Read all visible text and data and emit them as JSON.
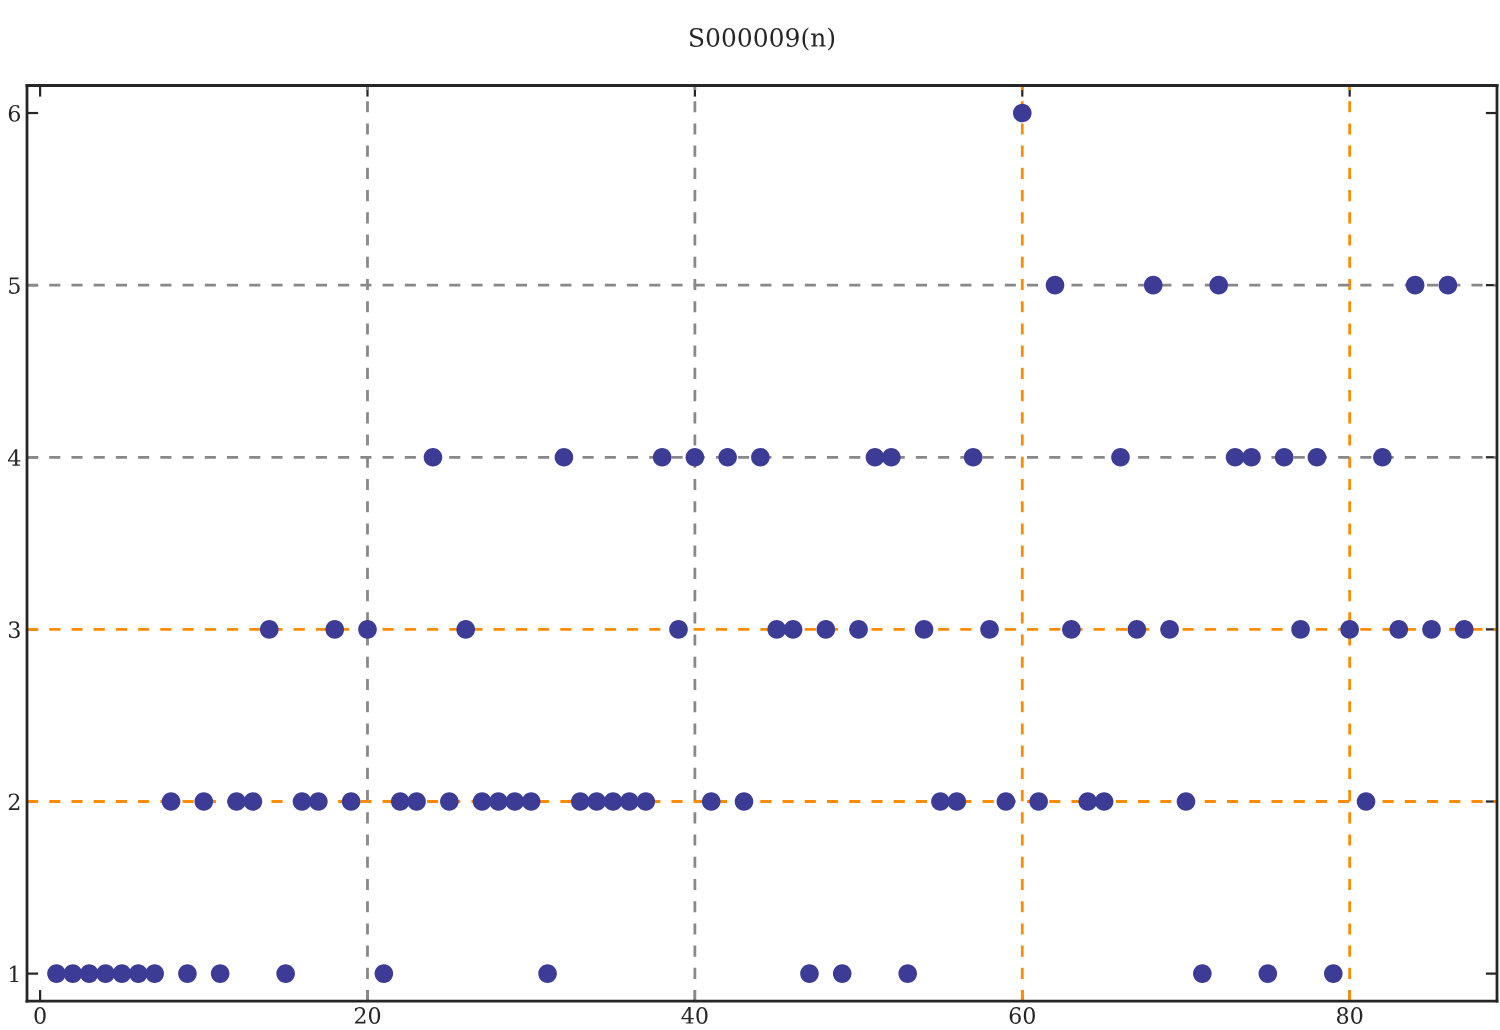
{
  "chart_data": {
    "type": "scatter",
    "title": "S000009(n)",
    "x": [
      1,
      2,
      3,
      4,
      5,
      6,
      7,
      8,
      9,
      10,
      11,
      12,
      13,
      14,
      15,
      16,
      17,
      18,
      19,
      20,
      21,
      22,
      23,
      24,
      25,
      26,
      27,
      28,
      29,
      30,
      31,
      32,
      33,
      34,
      35,
      36,
      37,
      38,
      39,
      40,
      41,
      42,
      43,
      44,
      45,
      46,
      47,
      48,
      49,
      50,
      51,
      52,
      53,
      54,
      55,
      56,
      57,
      58,
      59,
      60,
      61,
      62,
      63,
      64,
      65,
      66,
      67,
      68,
      69,
      70,
      71,
      72,
      73,
      74,
      75,
      76,
      77,
      78,
      79,
      80,
      81,
      82,
      83,
      84,
      85,
      86,
      87
    ],
    "series": [
      {
        "color": "#3c3c96",
        "values": [
          1,
          1,
          1,
          1,
          1,
          1,
          1,
          2,
          1,
          2,
          1,
          2,
          2,
          3,
          1,
          2,
          2,
          3,
          2,
          3,
          1,
          2,
          2,
          4,
          2,
          3,
          2,
          2,
          2,
          2,
          1,
          4,
          2,
          2,
          2,
          2,
          2,
          4,
          3,
          4,
          2,
          4,
          2,
          4,
          3,
          3,
          1,
          3,
          1,
          3,
          4,
          4,
          1,
          3,
          2,
          2,
          4,
          3,
          2,
          6,
          2,
          5,
          3,
          2,
          2,
          4,
          3,
          5,
          3,
          2,
          1,
          5,
          4,
          4,
          1,
          4,
          3,
          4,
          1,
          3,
          2,
          4,
          3,
          5,
          3,
          5,
          3
        ]
      }
    ],
    "marker": "circle",
    "xlim": [
      -0.8,
      89
    ],
    "ylim": [
      0.84,
      6.16
    ],
    "xticks": [
      0,
      20,
      40,
      60,
      80
    ],
    "yticks": [
      1,
      2,
      3,
      4,
      5,
      6
    ],
    "ref_lines": [
      {
        "axis": "x",
        "value": 20,
        "color": "#888888",
        "line_style": "dashed"
      },
      {
        "axis": "x",
        "value": 40,
        "color": "#888888",
        "line_style": "dashed"
      },
      {
        "axis": "x",
        "value": 60,
        "color": "#ff8c00",
        "line_style": "dashed"
      },
      {
        "axis": "x",
        "value": 80,
        "color": "#ff8c00",
        "line_style": "dashed"
      },
      {
        "axis": "y",
        "value": 2,
        "color": "#ff8c00",
        "line_style": "dashed"
      },
      {
        "axis": "y",
        "value": 3,
        "color": "#ff8c00",
        "line_style": "dashed"
      },
      {
        "axis": "y",
        "value": 4,
        "color": "#888888",
        "line_style": "dashed"
      },
      {
        "axis": "y",
        "value": 5,
        "color": "#888888",
        "line_style": "dashed"
      }
    ]
  }
}
